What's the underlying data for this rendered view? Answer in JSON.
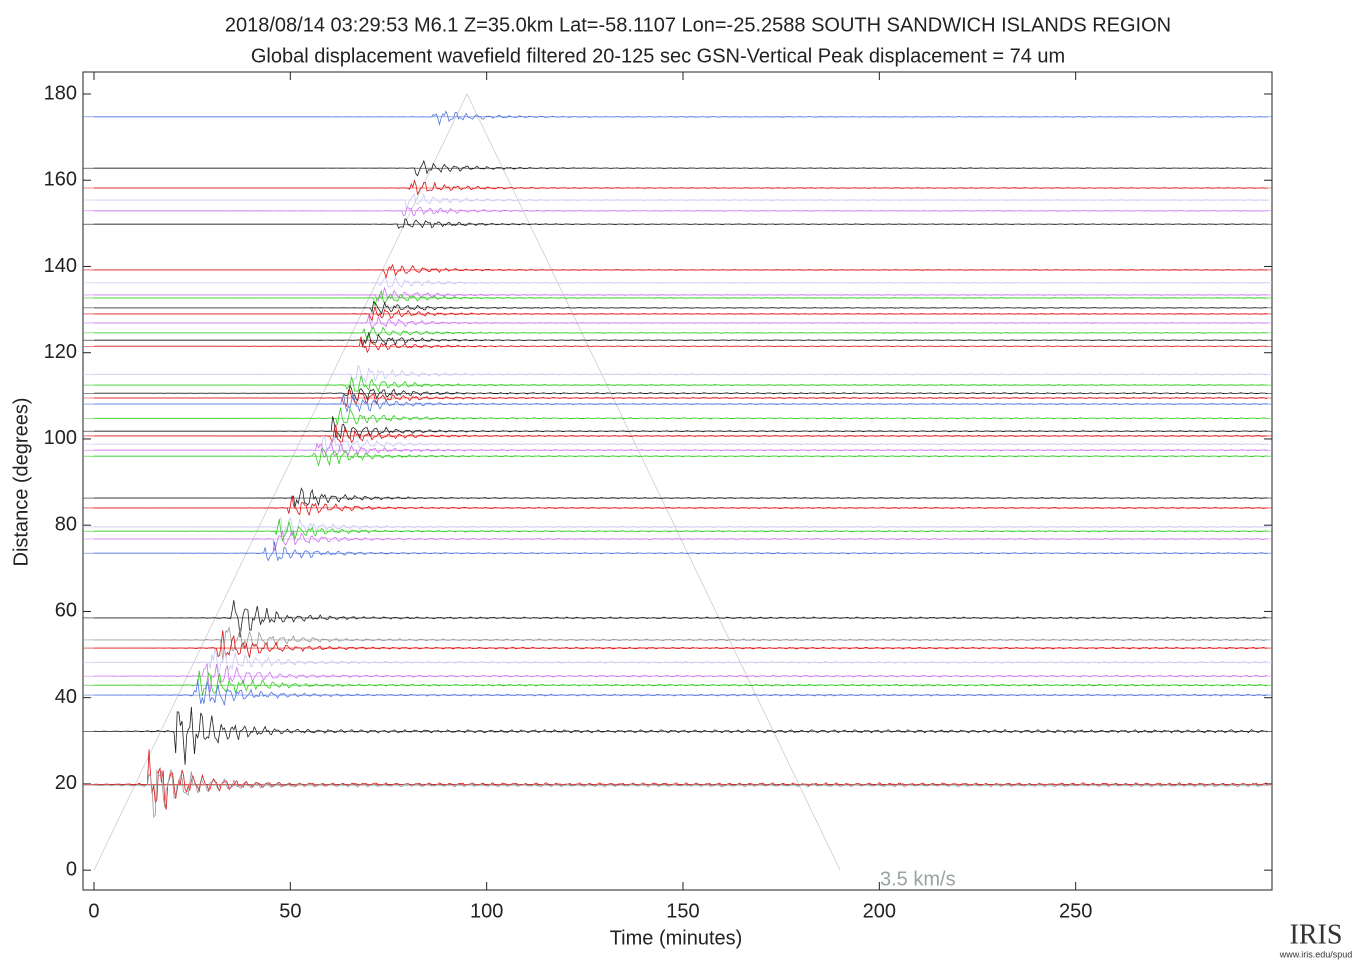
{
  "chart_data": {
    "type": "record_section",
    "title": "2018/08/14  03:29:53  M6.1  Z=35.0km  Lat=-58.1107 Lon=-25.2588  SOUTH SANDWICH ISLANDS REGION",
    "subtitle": "Global displacement wavefield     filtered 20-125 sec    GSN-Vertical    Peak displacement =  74 um",
    "x_label": "Time (minutes)",
    "y_label": "Distance (degrees)",
    "xlim": [
      -2.8,
      300
    ],
    "ylim": [
      -4.6,
      185.1
    ],
    "xticks": [
      0,
      50,
      100,
      150,
      200,
      250
    ],
    "yticks": [
      0,
      20,
      40,
      60,
      80,
      100,
      120,
      140,
      160,
      180
    ],
    "annotation": "3.5 km/s",
    "velocity_curve": {
      "x": [
        0,
        95,
        190
      ],
      "y": [
        0,
        180,
        0
      ]
    },
    "logo": {
      "name": "IRIS",
      "url": "www.iris.edu/spud"
    },
    "traces": [
      {
        "distance": 174.7,
        "color": "#5577dd"
      },
      {
        "distance": 162.8,
        "color": "#222222"
      },
      {
        "distance": 158.2,
        "color": "#dd1111"
      },
      {
        "distance": 155.4,
        "color": "#c8c8f0"
      },
      {
        "distance": 152.9,
        "color": "#cc77ee"
      },
      {
        "distance": 149.8,
        "color": "#222222"
      },
      {
        "distance": 139.2,
        "color": "#dd1111"
      },
      {
        "distance": 136.2,
        "color": "#c8c8f0"
      },
      {
        "distance": 133.4,
        "color": "#cc77ee"
      },
      {
        "distance": 132.7,
        "color": "#33cc22"
      },
      {
        "distance": 130.4,
        "color": "#222222"
      },
      {
        "distance": 129.0,
        "color": "#dd1111"
      },
      {
        "distance": 126.9,
        "color": "#cc77ee"
      },
      {
        "distance": 124.6,
        "color": "#33cc22"
      },
      {
        "distance": 122.9,
        "color": "#222222"
      },
      {
        "distance": 121.5,
        "color": "#dd1111"
      },
      {
        "distance": 115.0,
        "color": "#c8c8f0"
      },
      {
        "distance": 112.5,
        "color": "#33cc22"
      },
      {
        "distance": 110.6,
        "color": "#222222"
      },
      {
        "distance": 109.5,
        "color": "#dd1111"
      },
      {
        "distance": 108.1,
        "color": "#5577dd"
      },
      {
        "distance": 104.8,
        "color": "#33cc22"
      },
      {
        "distance": 101.8,
        "color": "#222222"
      },
      {
        "distance": 100.7,
        "color": "#dd1111"
      },
      {
        "distance": 98.8,
        "color": "#c8c8f0"
      },
      {
        "distance": 97.4,
        "color": "#cc77ee"
      },
      {
        "distance": 96.0,
        "color": "#33cc22"
      },
      {
        "distance": 86.3,
        "color": "#222222"
      },
      {
        "distance": 84.0,
        "color": "#dd1111"
      },
      {
        "distance": 79.6,
        "color": "#c8c8f0"
      },
      {
        "distance": 78.6,
        "color": "#33cc22"
      },
      {
        "distance": 76.8,
        "color": "#cc77ee"
      },
      {
        "distance": 73.5,
        "color": "#5577dd"
      },
      {
        "distance": 58.5,
        "color": "#222222"
      },
      {
        "distance": 53.4,
        "color": "#999999"
      },
      {
        "distance": 51.5,
        "color": "#dd1111"
      },
      {
        "distance": 48.2,
        "color": "#c8c8f0"
      },
      {
        "distance": 45.0,
        "color": "#cc77ee"
      },
      {
        "distance": 42.9,
        "color": "#33cc22"
      },
      {
        "distance": 40.6,
        "color": "#5577dd"
      },
      {
        "distance": 32.2,
        "color": "#222222"
      },
      {
        "distance": 19.9,
        "color": "#dd1111"
      },
      {
        "distance": 19.7,
        "color": "#999999"
      }
    ]
  }
}
